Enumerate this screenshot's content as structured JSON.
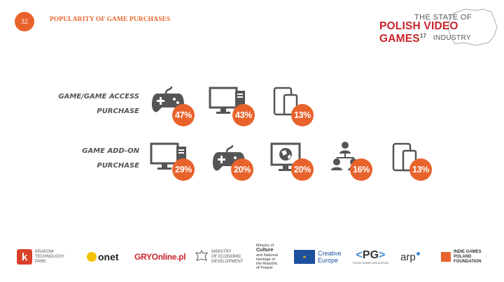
{
  "header": {
    "page_number": "32",
    "title": "POPULARITY OF GAME PURCHASES",
    "brand": {
      "line1": "THE STATE OF",
      "line2": "POLISH VIDEO GAMES",
      "year": "17",
      "line3": "INDUSTRY"
    }
  },
  "rows": [
    {
      "label_lines": [
        "GAME/GAME ACCESS",
        "PURCHASE"
      ],
      "items": [
        {
          "icon": "gamepad-icon",
          "value": "47%"
        },
        {
          "icon": "desktop-pc-icon",
          "value": "43%"
        },
        {
          "icon": "mobile-devices-icon",
          "value": "13%"
        }
      ]
    },
    {
      "label_lines": [
        "GAME ADD-ON",
        "PURCHASE"
      ],
      "items": [
        {
          "icon": "desktop-pc-icon",
          "value": "29%"
        },
        {
          "icon": "gamepad-icon",
          "value": "20%"
        },
        {
          "icon": "globe-monitor-icon",
          "value": "20%"
        },
        {
          "icon": "people-network-icon",
          "value": "16%"
        },
        {
          "icon": "mobile-devices-icon",
          "value": "13%"
        }
      ]
    }
  ],
  "footer": {
    "krakow": [
      "KRAKOW",
      "TECHNOLOGY",
      "PARK"
    ],
    "onet": "onet",
    "gry": "GRYOnline.pl",
    "ministry_econ": [
      "MINISTRY",
      "OF ECONOMIC",
      "DEVELOPMENT"
    ],
    "ministry_culture": [
      "Ministry of",
      "Culture",
      "and National",
      "Heritage of",
      "the Republic",
      "of Poland"
    ],
    "creative": [
      "Creative",
      "Europe"
    ],
    "pg": "PG",
    "pg_sub": "POLISH GAMES ASSOCIATION",
    "arp": "arp",
    "indie": [
      "INDIE GAMES",
      "POLAND",
      "FOUNDATION"
    ]
  },
  "colors": {
    "accent": "#e8632b",
    "icon": "#555555",
    "brand_red": "#c8232b"
  }
}
